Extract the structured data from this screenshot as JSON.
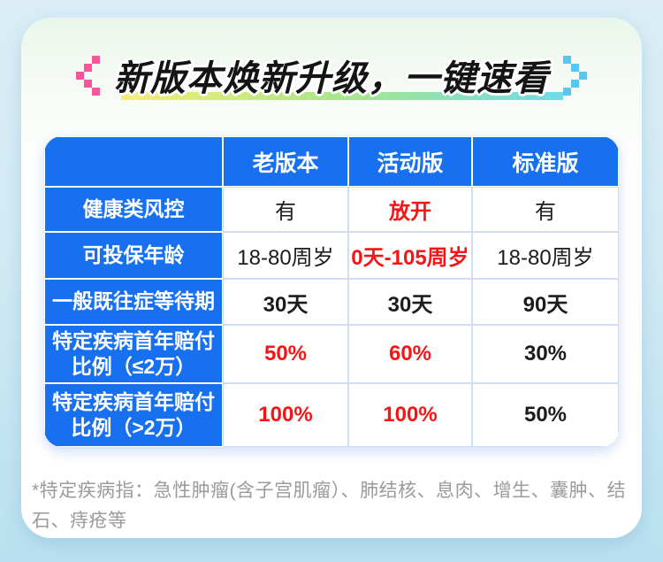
{
  "title": "新版本焕新升级，一键速看",
  "chart_data": {
    "type": "table",
    "title": "新版本焕新升级，一键速看",
    "columns": [
      "老版本",
      "活动版",
      "标准版"
    ],
    "row_labels": [
      "健康类风控",
      "可投保年龄",
      "一般既往症等待期",
      "特定疾病首年赔付比例（≤2万）",
      "特定疾病首年赔付比例（>2万）"
    ],
    "rows": [
      [
        "有",
        "放开",
        "有"
      ],
      [
        "18-80周岁",
        "0天-105周岁",
        "18-80周岁"
      ],
      [
        "30天",
        "30天",
        "90天"
      ],
      [
        "50%",
        "60%",
        "30%"
      ],
      [
        "100%",
        "100%",
        "50%"
      ]
    ],
    "red_highlighted_cells": [
      [
        0,
        1
      ],
      [
        1,
        1
      ],
      [
        3,
        0
      ],
      [
        3,
        1
      ],
      [
        4,
        0
      ],
      [
        4,
        1
      ]
    ],
    "footnote": "*特定疾病指：急性肿瘤(含子宫肌瘤）、肺结核、息肉、增生、囊肿、结石、痔疮等"
  },
  "icons": {
    "left_bracket": "pixel-arrow-left-icon",
    "right_bracket": "pixel-arrow-right-icon"
  },
  "colors": {
    "brand_blue": "#1770ef",
    "highlight_red": "#f81414",
    "text_dark": "#1c1c1c",
    "grid_line": "#cfdcf2",
    "note_gray": "#9b9b9b",
    "accent_pink": "#fa549a",
    "accent_cyan": "#57c7f1",
    "underline_1": "#f6ee72",
    "underline_2": "#abe68a",
    "underline_3": "#6fdbe7"
  }
}
